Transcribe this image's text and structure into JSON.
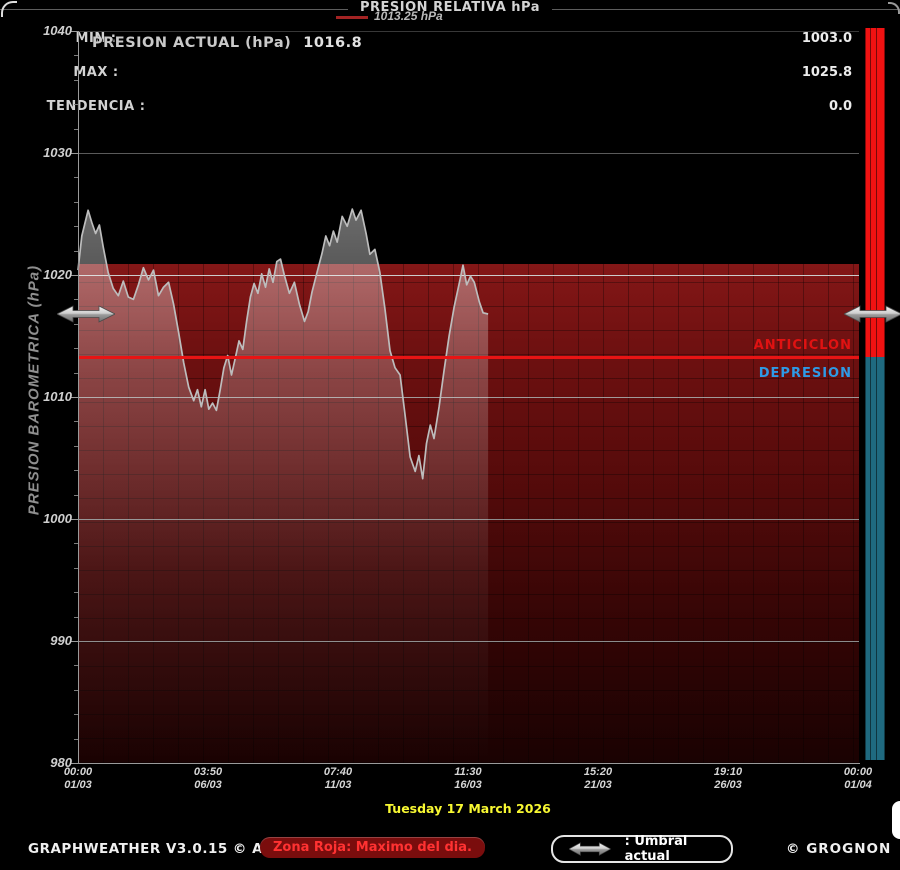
{
  "app": {
    "version_line": "GRAPHWEATHER V3.0.15 © Aguilmard",
    "credit": "© GROGNON"
  },
  "legend": {
    "threshold_label": "1013.25 hPa"
  },
  "header": {
    "title": "PRESION ACTUAL (hPa)",
    "value": "1016.8"
  },
  "relative_panel": {
    "title": "PRESION RELATIVA hPa",
    "rows": [
      {
        "label": "MIN :",
        "value": "1003.0"
      },
      {
        "label": "MAX :",
        "value": "1025.8"
      },
      {
        "label": "TENDENCIA :",
        "value": "0.0"
      }
    ]
  },
  "zone_labels": {
    "anticiclon": "ANTICICLON",
    "depresion": "DEPRESION"
  },
  "date_banner": "Tuesday 17 March 2026",
  "footer": {
    "red_zone_badge": "Zona Roja: Maximo del dia.",
    "umbral_label": ": Umbral actual"
  },
  "colors": {
    "threshold_red": "#e81414",
    "red_zone": "#7d1414",
    "anticiclon_text": "#e01212",
    "depresion_text": "#2e9ae6",
    "bar_red": "#f01212",
    "bar_teal": "#1f6a80",
    "date_yellow": "#f8f832",
    "badge_bg": "#7a0d0d",
    "badge_text": "#ff3232"
  },
  "chart_data": {
    "type": "area",
    "title": "PRESION ACTUAL (hPa) 1016.8",
    "ylabel": "PRESION BAROMETRICA (hPa)",
    "y_unit": "hPa",
    "ylim": [
      980,
      1040
    ],
    "y_ticks": [
      1040,
      1030,
      1020,
      1010,
      1000,
      990,
      980
    ],
    "x_ticks": [
      {
        "time": "00:00",
        "date": "01/03"
      },
      {
        "time": "03:50",
        "date": "06/03"
      },
      {
        "time": "07:40",
        "date": "11/03"
      },
      {
        "time": "11:30",
        "date": "16/03"
      },
      {
        "time": "15:20",
        "date": "21/03"
      },
      {
        "time": "19:10",
        "date": "26/03"
      },
      {
        "time": "00:00",
        "date": "01/04"
      }
    ],
    "x_range_days": [
      1,
      32
    ],
    "grid": true,
    "legend_position": "top-center",
    "threshold_hpa": 1013.25,
    "current_hpa": 1016.8,
    "red_zone_top_hpa": 1020.9,
    "min_hpa": 1003.0,
    "max_hpa": 1025.8,
    "tendencia": 0.0,
    "points": [
      [
        1.0,
        1020.4
      ],
      [
        1.15,
        1023.2
      ],
      [
        1.4,
        1025.3
      ],
      [
        1.55,
        1024.3
      ],
      [
        1.7,
        1023.4
      ],
      [
        1.85,
        1024.1
      ],
      [
        2.0,
        1022.3
      ],
      [
        2.2,
        1020.2
      ],
      [
        2.4,
        1018.9
      ],
      [
        2.6,
        1018.3
      ],
      [
        2.8,
        1019.5
      ],
      [
        3.0,
        1018.2
      ],
      [
        3.2,
        1018.0
      ],
      [
        3.4,
        1019.2
      ],
      [
        3.6,
        1020.6
      ],
      [
        3.8,
        1019.6
      ],
      [
        4.0,
        1020.4
      ],
      [
        4.2,
        1018.3
      ],
      [
        4.4,
        1019.0
      ],
      [
        4.6,
        1019.4
      ],
      [
        4.8,
        1017.6
      ],
      [
        5.0,
        1015.3
      ],
      [
        5.2,
        1012.8
      ],
      [
        5.4,
        1010.8
      ],
      [
        5.6,
        1009.7
      ],
      [
        5.75,
        1010.6
      ],
      [
        5.9,
        1009.2
      ],
      [
        6.05,
        1010.6
      ],
      [
        6.2,
        1009.0
      ],
      [
        6.35,
        1009.5
      ],
      [
        6.5,
        1008.9
      ],
      [
        6.65,
        1010.6
      ],
      [
        6.8,
        1012.4
      ],
      [
        6.95,
        1013.4
      ],
      [
        7.1,
        1011.8
      ],
      [
        7.25,
        1013.2
      ],
      [
        7.4,
        1014.6
      ],
      [
        7.55,
        1013.9
      ],
      [
        7.7,
        1016.2
      ],
      [
        7.85,
        1018.2
      ],
      [
        8.0,
        1019.3
      ],
      [
        8.15,
        1018.5
      ],
      [
        8.3,
        1020.1
      ],
      [
        8.45,
        1019.0
      ],
      [
        8.6,
        1020.5
      ],
      [
        8.75,
        1019.4
      ],
      [
        8.9,
        1021.1
      ],
      [
        9.05,
        1021.3
      ],
      [
        9.2,
        1020.0
      ],
      [
        9.4,
        1018.5
      ],
      [
        9.6,
        1019.4
      ],
      [
        9.8,
        1017.6
      ],
      [
        10.0,
        1016.2
      ],
      [
        10.15,
        1017.0
      ],
      [
        10.3,
        1018.6
      ],
      [
        10.5,
        1020.2
      ],
      [
        10.7,
        1021.8
      ],
      [
        10.85,
        1023.2
      ],
      [
        11.0,
        1022.4
      ],
      [
        11.15,
        1023.6
      ],
      [
        11.3,
        1022.7
      ],
      [
        11.5,
        1024.8
      ],
      [
        11.7,
        1024.0
      ],
      [
        11.9,
        1025.4
      ],
      [
        12.05,
        1024.5
      ],
      [
        12.25,
        1025.3
      ],
      [
        12.45,
        1023.4
      ],
      [
        12.6,
        1021.7
      ],
      [
        12.8,
        1022.1
      ],
      [
        13.0,
        1020.2
      ],
      [
        13.2,
        1017.2
      ],
      [
        13.4,
        1013.8
      ],
      [
        13.6,
        1012.4
      ],
      [
        13.8,
        1011.8
      ],
      [
        14.0,
        1008.5
      ],
      [
        14.2,
        1005.1
      ],
      [
        14.4,
        1003.9
      ],
      [
        14.55,
        1005.2
      ],
      [
        14.7,
        1003.3
      ],
      [
        14.85,
        1006.2
      ],
      [
        15.0,
        1007.7
      ],
      [
        15.15,
        1006.6
      ],
      [
        15.35,
        1009.2
      ],
      [
        15.55,
        1012.2
      ],
      [
        15.75,
        1015.0
      ],
      [
        15.95,
        1017.4
      ],
      [
        16.15,
        1019.3
      ],
      [
        16.3,
        1020.8
      ],
      [
        16.45,
        1019.2
      ],
      [
        16.6,
        1019.9
      ],
      [
        16.75,
        1019.4
      ],
      [
        16.95,
        1017.8
      ],
      [
        17.1,
        1016.9
      ],
      [
        17.3,
        1016.8
      ]
    ]
  }
}
